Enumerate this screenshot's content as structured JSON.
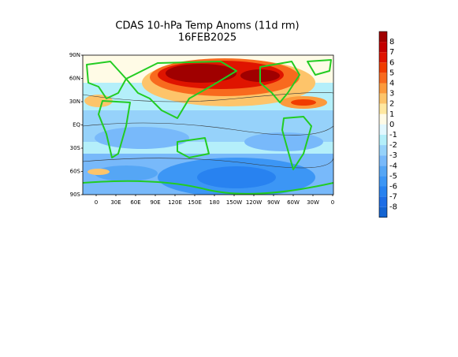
{
  "title": "CDAS 10-hPa Temp Anoms (11d rm)",
  "date": "16FEB2025",
  "lat_labels": [
    "90N",
    "60N",
    "30N",
    "EQ",
    "30S",
    "60S",
    "90S"
  ],
  "lon_labels": [
    "0",
    "30E",
    "60E",
    "90E",
    "120E",
    "150E",
    "180",
    "150W",
    "120W",
    "90W",
    "60W",
    "30W",
    "0"
  ],
  "colorbar": {
    "labels": [
      "8",
      "7",
      "6",
      "5",
      "4",
      "3",
      "2",
      "1",
      "0",
      "-1",
      "-2",
      "-3",
      "-4",
      "-5",
      "-6",
      "-7",
      "-8"
    ],
    "colors": [
      "#a00000",
      "#c30000",
      "#df1400",
      "#f03c00",
      "#f86a1e",
      "#fc9a3c",
      "#fdc46a",
      "#ffe8a0",
      "#fffbe6",
      "#e2f8ff",
      "#b4effa",
      "#96d2fa",
      "#78b9fa",
      "#55a6f5",
      "#3c96f5",
      "#2882f0",
      "#1e6ee6",
      "#1464d2"
    ]
  }
}
